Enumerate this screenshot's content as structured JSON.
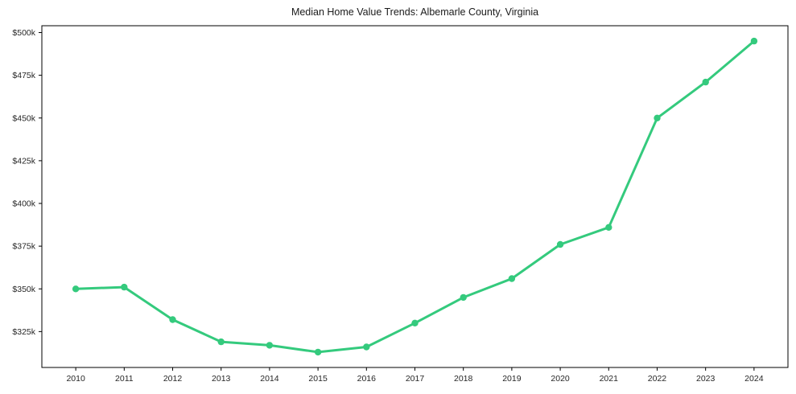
{
  "chart_data": {
    "type": "line",
    "title": "Median Home Value Trends: Albemarle County, Virginia",
    "series_name": "Median home value",
    "unit": "USD thousands",
    "x": [
      2010,
      2011,
      2012,
      2013,
      2014,
      2015,
      2016,
      2017,
      2018,
      2019,
      2020,
      2021,
      2022,
      2023,
      2024
    ],
    "values": [
      350,
      351,
      332,
      319,
      317,
      313,
      316,
      330,
      345,
      356,
      376,
      386,
      450,
      471,
      495
    ],
    "xticks": {
      "values": [
        2010,
        2011,
        2012,
        2013,
        2014,
        2015,
        2016,
        2017,
        2018,
        2019,
        2020,
        2021,
        2022,
        2023,
        2024
      ],
      "labels": [
        "2010",
        "2011",
        "2012",
        "2013",
        "2014",
        "2015",
        "2016",
        "2017",
        "2018",
        "2019",
        "2020",
        "2021",
        "2022",
        "2023",
        "2024"
      ]
    },
    "yticks": {
      "values": [
        325,
        350,
        375,
        400,
        425,
        450,
        475,
        500
      ],
      "labels": [
        "$325k",
        "$350k",
        "$375k",
        "$400k",
        "$425k",
        "$450k",
        "$475k",
        "$500k"
      ]
    },
    "xlim": [
      2009.3,
      2024.7
    ],
    "ylim": [
      304,
      504
    ],
    "grid": false,
    "legend": "none",
    "line_color": "#34ca7d",
    "marker": "circle",
    "axis_color": "#000000",
    "tick_label_color": "#262626",
    "title_color": "#1a1a1a",
    "background": "#ffffff"
  }
}
